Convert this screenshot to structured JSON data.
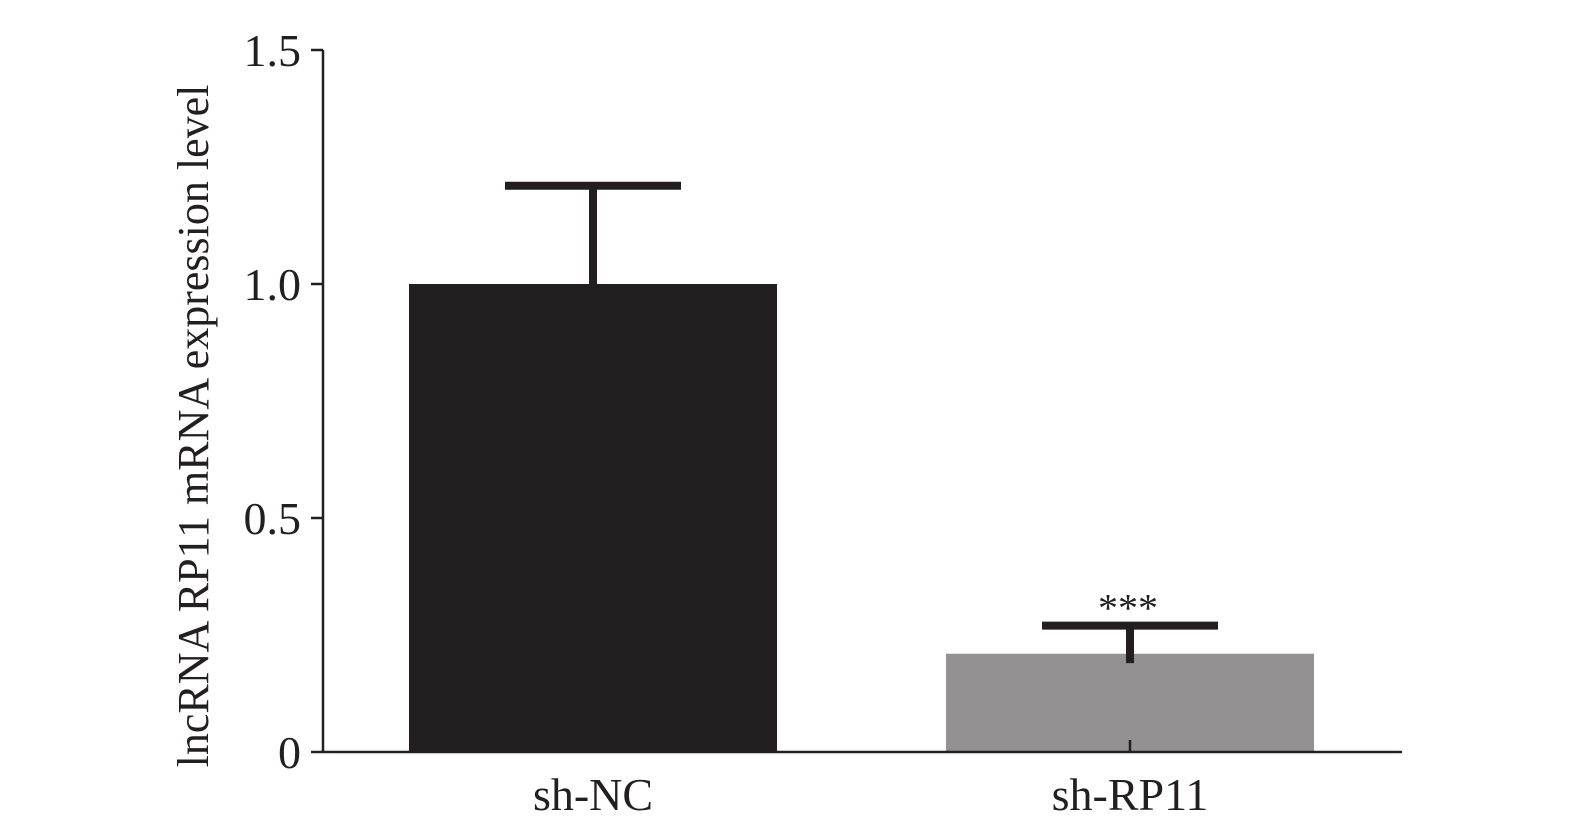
{
  "chart_data": {
    "type": "bar",
    "title": "",
    "xlabel": "",
    "ylabel": "lncRNA RP11 mRNA expression level",
    "categories": [
      "sh-NC",
      "sh-RP11"
    ],
    "values": [
      1.0,
      0.21
    ],
    "error_upper": [
      0.21,
      0.06
    ],
    "error_lower": [
      0.0,
      0.02
    ],
    "significance": [
      "",
      "***"
    ],
    "colors": [
      "#231f20",
      "#939192"
    ],
    "ylim": [
      0,
      1.5
    ],
    "yticks": [
      0,
      0.5,
      1.0,
      1.5
    ],
    "ytick_labels": [
      "0",
      "0.5",
      "1.0",
      "1.5"
    ],
    "grid": false,
    "legend": "none"
  }
}
